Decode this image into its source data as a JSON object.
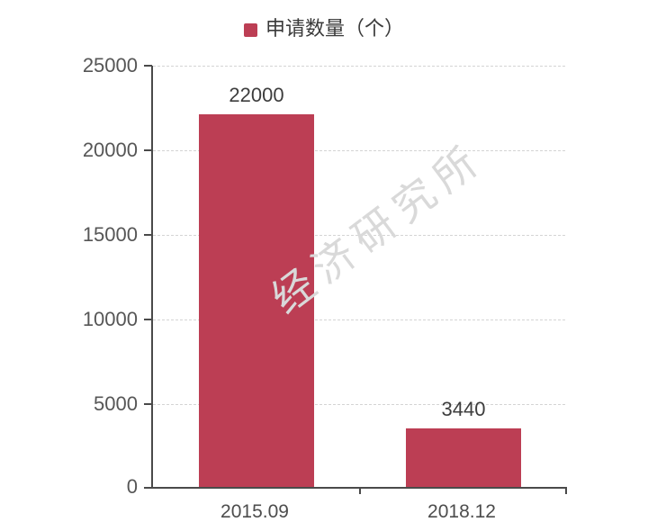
{
  "chart_data": {
    "type": "bar",
    "title": "",
    "legend": {
      "label": "申请数量（个）",
      "marker_color": "#bc3e54",
      "position": "top-center"
    },
    "categories": [
      "2015.09",
      "2018.12"
    ],
    "values": [
      22000,
      3440
    ],
    "bar_color": "#bc3e54",
    "ylim": [
      0,
      25000
    ],
    "y_ticks": [
      "25000",
      "20000",
      "15000",
      "10000",
      "5000",
      "0"
    ],
    "grid": "horizontal dashed gridlines at each y tick",
    "watermark": "经济研究所"
  },
  "colors": {
    "bar": "#bc3e54",
    "axis": "#4a4a4a",
    "gridline": "#d4d4d4",
    "tick_label": "#565656",
    "value_label": "#3d3d3d",
    "watermark": "#d9d9d9",
    "background": "#ffffff"
  }
}
